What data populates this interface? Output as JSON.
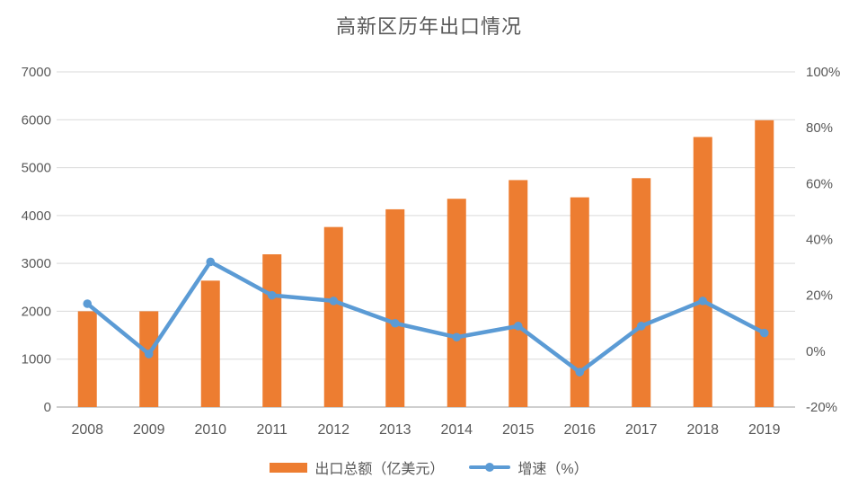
{
  "chart_data": {
    "type": "combo-bar-line",
    "title": "高新区历年出口情况",
    "categories": [
      "2008",
      "2009",
      "2010",
      "2011",
      "2012",
      "2013",
      "2014",
      "2015",
      "2016",
      "2017",
      "2018",
      "2019"
    ],
    "series": [
      {
        "name": "出口总额（亿美元）",
        "type": "bar",
        "axis": "left",
        "color": "#ED7D31",
        "values": [
          2000,
          2000,
          2640,
          3190,
          3760,
          4130,
          4350,
          4740,
          4380,
          4780,
          5640,
          5990
        ]
      },
      {
        "name": "增速（%）",
        "type": "line",
        "axis": "right",
        "color": "#5B9BD5",
        "values": [
          17,
          -1,
          32,
          20,
          18,
          10,
          5,
          9,
          -7.5,
          9,
          18,
          6.5
        ]
      }
    ],
    "left_axis": {
      "min": 0,
      "max": 7000,
      "step": 1000,
      "tick_labels": [
        "0",
        "1000",
        "2000",
        "3000",
        "4000",
        "5000",
        "6000",
        "7000"
      ]
    },
    "right_axis": {
      "min": -20,
      "max": 100,
      "step": 20,
      "tick_labels": [
        "-20%",
        "0%",
        "20%",
        "40%",
        "60%",
        "80%",
        "100%"
      ]
    },
    "grid": true,
    "legend_position": "bottom",
    "colors": {
      "gridline": "#D9D9D9",
      "axis_line": "#BFBFBF",
      "text": "#595959",
      "title_text": "#595959"
    }
  }
}
